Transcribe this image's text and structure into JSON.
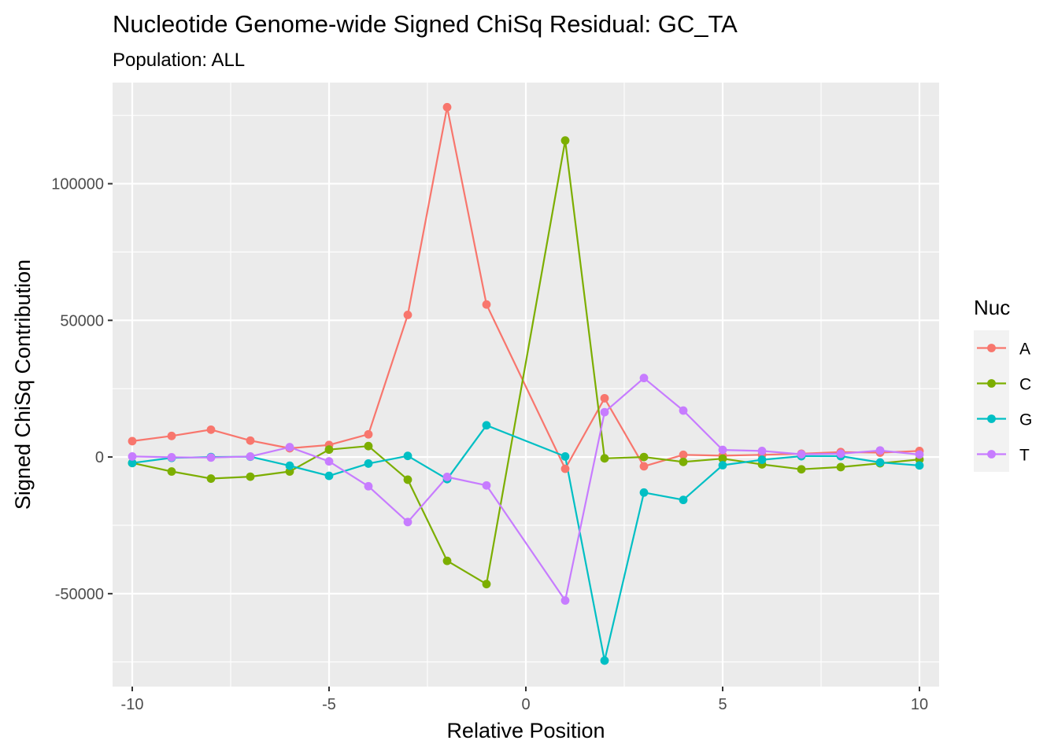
{
  "chart_data": {
    "type": "line",
    "title": "Nucleotide Genome-wide Signed ChiSq Residual: GC_TA",
    "subtitle": "Population: ALL",
    "xlabel": "Relative Position",
    "ylabel": "Signed ChiSq Contribution",
    "x": [
      -10,
      -9,
      -8,
      -7,
      -6,
      -5,
      -4,
      -3,
      -2,
      -1,
      1,
      2,
      3,
      4,
      5,
      6,
      7,
      8,
      9,
      10
    ],
    "xlim": [
      -10.5,
      10.5
    ],
    "ylim": [
      -84000,
      137000
    ],
    "x_ticks": [
      -10,
      -5,
      0,
      5,
      10
    ],
    "x_tick_labels": [
      "-10",
      "-5",
      "0",
      "5",
      "10"
    ],
    "y_ticks": [
      -50000,
      0,
      50000,
      100000
    ],
    "y_tick_labels": [
      "-50000",
      "0",
      "50000",
      "100000"
    ],
    "grid": true,
    "legend": {
      "title": "Nuc",
      "position": "right"
    },
    "series": [
      {
        "name": "A",
        "color": "#F8766D",
        "values": [
          5800,
          7700,
          10000,
          6000,
          3200,
          4400,
          8300,
          52000,
          128000,
          55800,
          -4300,
          21500,
          -3400,
          800,
          500,
          800,
          1200,
          1800,
          1600,
          2200
        ]
      },
      {
        "name": "C",
        "color": "#7CAE00",
        "values": [
          -2200,
          -5300,
          -7900,
          -7200,
          -5300,
          2700,
          4000,
          -8300,
          -38000,
          -46500,
          115800,
          -500,
          0,
          -1800,
          -600,
          -2700,
          -4500,
          -3700,
          -2300,
          -900
        ]
      },
      {
        "name": "G",
        "color": "#00BFC4",
        "values": [
          -2200,
          -300,
          0,
          100,
          -3200,
          -6900,
          -2400,
          400,
          -8100,
          11600,
          200,
          -74500,
          -13000,
          -15700,
          -3000,
          -1000,
          300,
          300,
          -2000,
          -3100
        ]
      },
      {
        "name": "T",
        "color": "#C77CFF",
        "values": [
          200,
          -100,
          -200,
          200,
          3600,
          -1600,
          -10700,
          -23800,
          -7300,
          -10400,
          -52500,
          16400,
          28900,
          17000,
          2600,
          2200,
          1000,
          1200,
          2400,
          900
        ]
      }
    ]
  }
}
